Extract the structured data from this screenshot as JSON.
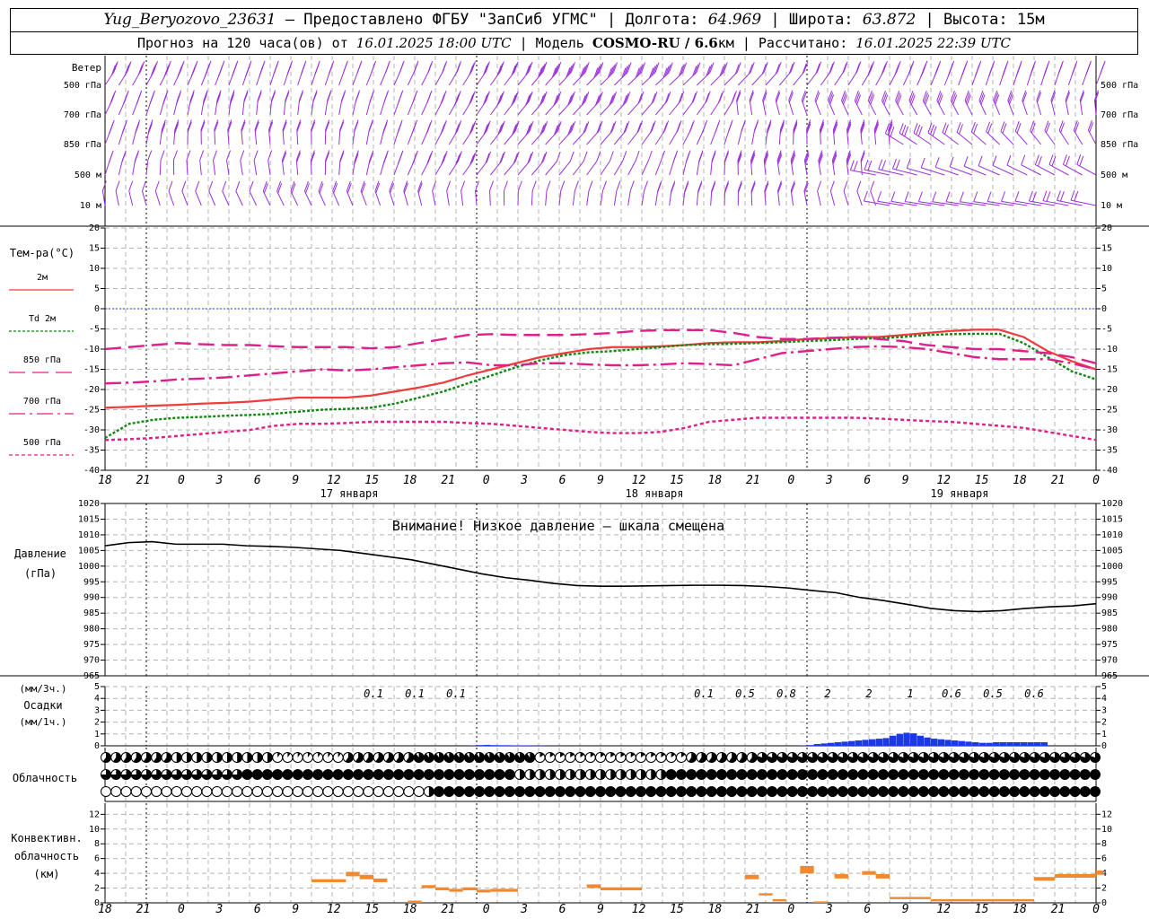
{
  "header": {
    "station": "Yug_Beryozovo_23631",
    "provider": "– Предоставлено ФГБУ \"ЗапСиб УГМС\" |",
    "lon_label": "Долгота:",
    "lon_value": "64.969",
    "lat_label": "| Широта:",
    "lat_value": "63.872",
    "alt_label": "| Высота:",
    "alt_value": "15м",
    "forecast_label": "Прогноз на 120 часа(ов) от",
    "forecast_time": "16.01.2025 18:00 UTC",
    "model_label": "| Модель",
    "model_name": "COSMO-RU / 6.6",
    "model_unit": "км",
    "calc_label": "| Рассчитано:",
    "calc_time": "16.01.2025 22:39 UTC"
  },
  "chart_data": {
    "time_axis": {
      "hour_labels": [
        "18",
        "21",
        "0",
        "3",
        "6",
        "9",
        "12",
        "15",
        "18",
        "21",
        "0",
        "3",
        "6",
        "9",
        "12",
        "15",
        "18",
        "21",
        "0",
        "3",
        "6",
        "9",
        "12",
        "15",
        "18",
        "21",
        "0"
      ],
      "day_labels": [
        "17 января",
        "18 января",
        "19 января"
      ]
    },
    "panels": [
      {
        "id": "wind",
        "type": "wind_barbs",
        "title": "Ветер",
        "levels": [
          "500 гПа",
          "700 гПа",
          "850 гПа",
          "500 м",
          "10  м"
        ],
        "barb_color": "#9b30d9"
      },
      {
        "id": "temperature",
        "type": "line",
        "ylabel": "Тем-ра(°С)",
        "ylim": [
          -40,
          20
        ],
        "yticks": [
          20,
          15,
          10,
          5,
          0,
          -5,
          -10,
          -15,
          -20,
          -25,
          -30,
          -35,
          -40
        ],
        "series": [
          {
            "name": "2м",
            "color": "#f03c3c",
            "dash": "solid",
            "values": [
              -24.5,
              -24.3,
              -24,
              -23.8,
              -23.5,
              -23.3,
              -23,
              -22.5,
              -22,
              -22,
              -22,
              -21.5,
              -20.5,
              -19.5,
              -18.3,
              -16.5,
              -15,
              -13.5,
              -12,
              -11,
              -10,
              -9.5,
              -9.5,
              -9.3,
              -9,
              -8.5,
              -8.3,
              -8.3,
              -8,
              -7.5,
              -7.3,
              -7,
              -7,
              -6.5,
              -6,
              -5.5,
              -5.2,
              -5.2,
              -7,
              -10.5,
              -13,
              -15
            ]
          },
          {
            "name": "Td 2м",
            "color": "#118811",
            "dash": "dotted",
            "values": [
              -32,
              -28.5,
              -27.5,
              -27,
              -26.8,
              -26.5,
              -26.3,
              -26,
              -25.5,
              -25,
              -24.8,
              -24.5,
              -23.5,
              -22,
              -20.5,
              -18.5,
              -16.5,
              -14.5,
              -12.8,
              -11.5,
              -10.8,
              -10.5,
              -10,
              -9.5,
              -9,
              -8.8,
              -8.7,
              -8.5,
              -8.3,
              -8,
              -7.8,
              -7.5,
              -7.3,
              -7,
              -6.5,
              -6.3,
              -6.2,
              -6.2,
              -8.5,
              -12,
              -15.5,
              -17.5
            ]
          },
          {
            "name": "850 гПа",
            "color": "#e0208a",
            "dash": "long-dash",
            "values": [
              -10,
              -9.5,
              -9,
              -8.5,
              -8.8,
              -9,
              -9,
              -9.3,
              -9.5,
              -9.5,
              -9.5,
              -9.8,
              -9.5,
              -8.5,
              -7.5,
              -6.5,
              -6.3,
              -6.5,
              -6.5,
              -6.5,
              -6.3,
              -6,
              -5.5,
              -5.3,
              -5.3,
              -5.3,
              -6,
              -7,
              -7.5,
              -7.5,
              -7.2,
              -7,
              -7.5,
              -8,
              -9,
              -9.5,
              -10,
              -10,
              -10.5,
              -11,
              -12,
              -13.5
            ]
          },
          {
            "name": "700 гПа",
            "color": "#e0208a",
            "dash": "dash-dot",
            "values": [
              -18.5,
              -18.3,
              -18,
              -17.5,
              -17.3,
              -17,
              -16.5,
              -16,
              -15.5,
              -15,
              -15.3,
              -15,
              -14.5,
              -14,
              -13.5,
              -13.3,
              -14,
              -14,
              -13.5,
              -13.5,
              -13.8,
              -14,
              -14,
              -13.8,
              -13.5,
              -13.7,
              -14,
              -12.5,
              -11,
              -10.5,
              -10,
              -9.5,
              -9.3,
              -9.5,
              -10,
              -11,
              -12,
              -12.5,
              -12.5,
              -12.5,
              -13.5,
              -15
            ]
          },
          {
            "name": "500 гПа",
            "color": "#e0208a",
            "dash": "fine-dash",
            "values": [
              -32.5,
              -32.3,
              -32,
              -31.5,
              -31,
              -30.5,
              -30,
              -29,
              -28.5,
              -28.5,
              -28.3,
              -28,
              -28,
              -28,
              -28,
              -28.3,
              -28.5,
              -29,
              -29.5,
              -30,
              -30.5,
              -30.8,
              -30.8,
              -30.5,
              -29.5,
              -28,
              -27.5,
              -27,
              -27,
              -27,
              -27,
              -27,
              -27.2,
              -27.5,
              -27.8,
              -28,
              -28.5,
              -29,
              -29.5,
              -30.5,
              -31.5,
              -32.5
            ]
          }
        ]
      },
      {
        "id": "pressure",
        "type": "line",
        "ylabel": "Давление",
        "yunit": "(гПа)",
        "ylim": [
          965,
          1020
        ],
        "yticks": [
          1020,
          1015,
          1010,
          1005,
          1000,
          995,
          990,
          985,
          980,
          975,
          970,
          965
        ],
        "annotation": "Внимание! Низкое давление – шкала смещена",
        "series": [
          {
            "name": "",
            "color": "#000000",
            "values": [
              1006.5,
              1007.5,
              1007.8,
              1007,
              1007,
              1007,
              1006.5,
              1006.3,
              1006,
              1005.5,
              1005,
              1004,
              1003,
              1002,
              1000.5,
              999,
              997.5,
              996.3,
              995.5,
              994.5,
              993.8,
              993.6,
              993.6,
              993.7,
              993.8,
              993.9,
              993.9,
              993.8,
              993.5,
              993,
              992.2,
              991.5,
              990,
              989,
              987.8,
              986.5,
              985.8,
              985.5,
              985.8,
              986.5,
              987,
              987.3,
              988
            ]
          }
        ]
      },
      {
        "id": "precipitation",
        "type": "bar",
        "ylabel": "Осадки",
        "yunit_3h": "(мм/3ч.)",
        "yunit_1h": "(мм/1ч.)",
        "ylim": [
          0,
          5
        ],
        "yticks": [
          5,
          4,
          3,
          2,
          1,
          0
        ],
        "bar_color": "#1a3ae8",
        "values_1h": [
          0,
          0,
          0,
          0,
          0,
          0,
          0,
          0,
          0,
          0,
          0,
          0,
          0,
          0,
          0,
          0,
          0,
          0,
          0,
          0,
          0,
          0,
          0,
          0,
          0,
          0,
          0,
          0,
          0,
          0,
          0,
          0,
          0,
          0,
          0,
          0,
          0,
          0,
          0,
          0,
          0,
          0,
          0,
          0,
          0,
          0,
          0,
          0,
          0,
          0,
          0,
          0,
          0,
          0.02,
          0.06,
          0.08,
          0.06,
          0.05,
          0.05,
          0.04,
          0.03,
          0.03,
          0.02,
          0.02,
          0.01,
          0.01,
          0.01,
          0,
          0,
          0,
          0,
          0,
          0,
          0,
          0,
          0,
          0,
          0,
          0,
          0,
          0,
          0,
          0,
          0,
          0,
          0,
          0,
          0,
          0,
          0,
          0,
          0,
          0,
          0,
          0,
          0,
          0,
          0,
          0,
          0,
          0,
          0.02,
          0.06,
          0.15,
          0.2,
          0.25,
          0.3,
          0.35,
          0.4,
          0.45,
          0.5,
          0.55,
          0.6,
          0.65,
          0.85,
          1,
          1.1,
          1.05,
          0.85,
          0.7,
          0.6,
          0.55,
          0.5,
          0.45,
          0.4,
          0.35,
          0.3,
          0.25,
          0.25,
          0.3,
          0.3,
          0.3,
          0.3,
          0.3,
          0.3,
          0.3,
          0.3
        ],
        "labels_3h": [
          {
            "x_hour": 45,
            "value": "0.1"
          },
          {
            "x_hour": 51,
            "value": "0.1"
          },
          {
            "x_hour": 57,
            "value": "0.1"
          },
          {
            "x_hour": 93,
            "value": "0.1"
          },
          {
            "x_hour": 99,
            "value": "0.5"
          },
          {
            "x_hour": 105,
            "value": "0.8"
          },
          {
            "x_hour": 111,
            "value": "2"
          },
          {
            "x_hour": 117,
            "value": "2"
          },
          {
            "x_hour": 123,
            "value": "1"
          },
          {
            "x_hour": 129,
            "value": "0.6"
          },
          {
            "x_hour": 135,
            "value": "0.5"
          },
          {
            "x_hour": 141,
            "value": "0.6"
          }
        ]
      },
      {
        "id": "cloudiness",
        "type": "symbols",
        "ylabel": "Облачность",
        "rows": [
          "ddddddddddddddddddddddddddddddddddddddddddddddddddddddddddddddddddddddddddddddddddddddddddddddddddd",
          "ddddddddddddddddddddddddddddddddddddddddddddddddddddddddddddddddddddddddddddddddddddddddddddddddddd",
          "ddddddddddddddddddddddddddddddddddddddddddddddddddddddddddddddddddddddddddddddddddddddddddddddddddd"
        ]
      },
      {
        "id": "convective",
        "type": "bar",
        "ylabel_1": "Конвективн.",
        "ylabel_2": "облачность",
        "yunit": "(км)",
        "ylim": [
          0,
          13
        ],
        "yticks": [
          12,
          10,
          8,
          6,
          4,
          2,
          0
        ],
        "bar_color": "#f08a30",
        "segments": [
          {
            "t0": 30,
            "t1": 35,
            "base": 2.8,
            "top": 3.2
          },
          {
            "t0": 35,
            "t1": 37,
            "base": 3.6,
            "top": 4.2
          },
          {
            "t0": 37,
            "t1": 39,
            "base": 3.2,
            "top": 3.8
          },
          {
            "t0": 39,
            "t1": 41,
            "base": 2.8,
            "top": 3.3
          },
          {
            "t0": 44,
            "t1": 46,
            "base": 0,
            "top": 0.3
          },
          {
            "t0": 46,
            "t1": 48,
            "base": 2,
            "top": 2.4
          },
          {
            "t0": 48,
            "t1": 50,
            "base": 1.7,
            "top": 2.1
          },
          {
            "t0": 50,
            "t1": 52,
            "base": 1.5,
            "top": 1.9
          },
          {
            "t0": 52,
            "t1": 54,
            "base": 1.7,
            "top": 2.1
          },
          {
            "t0": 54,
            "t1": 56,
            "base": 1.4,
            "top": 1.8
          },
          {
            "t0": 56,
            "t1": 60,
            "base": 1.5,
            "top": 1.9
          },
          {
            "t0": 70,
            "t1": 72,
            "base": 2,
            "top": 2.5
          },
          {
            "t0": 72,
            "t1": 78,
            "base": 1.7,
            "top": 2.1
          },
          {
            "t0": 93,
            "t1": 95,
            "base": 3.2,
            "top": 3.8
          },
          {
            "t0": 95,
            "t1": 97,
            "base": 1,
            "top": 1.3
          },
          {
            "t0": 97,
            "t1": 99,
            "base": 0.2,
            "top": 0.5
          },
          {
            "t0": 101,
            "t1": 103,
            "base": 4,
            "top": 5
          },
          {
            "t0": 103,
            "t1": 105,
            "base": 0,
            "top": 0.2
          },
          {
            "t0": 106,
            "t1": 108,
            "base": 3.3,
            "top": 3.9
          },
          {
            "t0": 110,
            "t1": 112,
            "base": 3.8,
            "top": 4.3
          },
          {
            "t0": 112,
            "t1": 114,
            "base": 3.3,
            "top": 3.9
          },
          {
            "t0": 114,
            "t1": 120,
            "base": 0.5,
            "top": 0.8
          },
          {
            "t0": 120,
            "t1": 135,
            "base": 0.2,
            "top": 0.5
          },
          {
            "t0": 135,
            "t1": 138,
            "base": 3,
            "top": 3.5
          },
          {
            "t0": 138,
            "t1": 144,
            "base": 3.4,
            "top": 3.9
          },
          {
            "t0": 144,
            "t1": 145,
            "base": 3.8,
            "top": 4.4
          }
        ]
      }
    ]
  }
}
